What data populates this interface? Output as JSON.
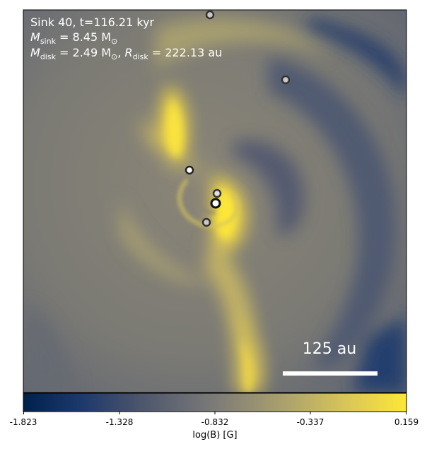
{
  "info": {
    "line1": "Sink 40, t=116.21 kyr",
    "line2_sym": "M",
    "line2_sub": "sink",
    "line2_rest": " = 8.45 M",
    "line2_sun": "⊙",
    "line3_sym": "M",
    "line3_sub": "disk",
    "line3_mid": " = 2.49 M",
    "line3_sun": "⊙",
    "line3_sep": ", ",
    "line3_r": "R",
    "line3_rsub": "disk",
    "line3_rest": " = 222.13 au"
  },
  "scale_bar": {
    "label": "125 au"
  },
  "colorbar": {
    "label": "log(B) [G]",
    "ticks": [
      "-1.823",
      "-1.328",
      "-0.832",
      "-0.337",
      "0.159"
    ],
    "colormap": "cividis",
    "low_color": "#00204c",
    "mid_color": "#7c7b78",
    "high_color": "#fde737"
  }
}
